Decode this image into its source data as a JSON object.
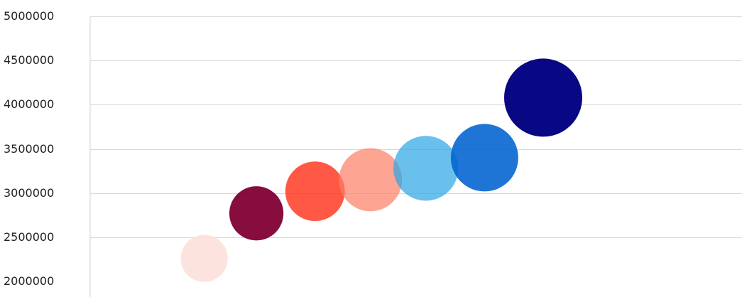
{
  "chart_data": {
    "type": "bubble",
    "title": "",
    "xlabel": "",
    "ylabel": "",
    "ylim": [
      2000000,
      5000000
    ],
    "xlim": [
      0,
      10
    ],
    "grid": true,
    "legend": "none",
    "y_ticks": [
      5000000,
      4500000,
      4000000,
      3500000,
      3000000,
      2500000,
      2000000
    ],
    "y_tick_labels": [
      "5000000",
      "4500000",
      "4000000",
      "3500000",
      "3000000",
      "2500000",
      "2000000"
    ],
    "points": [
      {
        "x": 1.75,
        "y": 2260000,
        "size": 0.53,
        "color": "#fde0da",
        "opacity": 0.9
      },
      {
        "x": 2.55,
        "y": 2770000,
        "size": 0.61,
        "color": "#7f0033",
        "opacity": 0.95
      },
      {
        "x": 3.45,
        "y": 3020000,
        "size": 0.67,
        "color": "#ff3018",
        "opacity": 0.8
      },
      {
        "x": 4.3,
        "y": 3150000,
        "size": 0.71,
        "color": "#fc7d65",
        "opacity": 0.7
      },
      {
        "x": 5.15,
        "y": 3280000,
        "size": 0.73,
        "color": "#2aa5e4",
        "opacity": 0.7
      },
      {
        "x": 6.05,
        "y": 3400000,
        "size": 0.76,
        "color": "#0062d0",
        "opacity": 0.88
      },
      {
        "x": 6.95,
        "y": 4080000,
        "size": 0.88,
        "color": "#000080",
        "opacity": 0.97
      }
    ]
  }
}
